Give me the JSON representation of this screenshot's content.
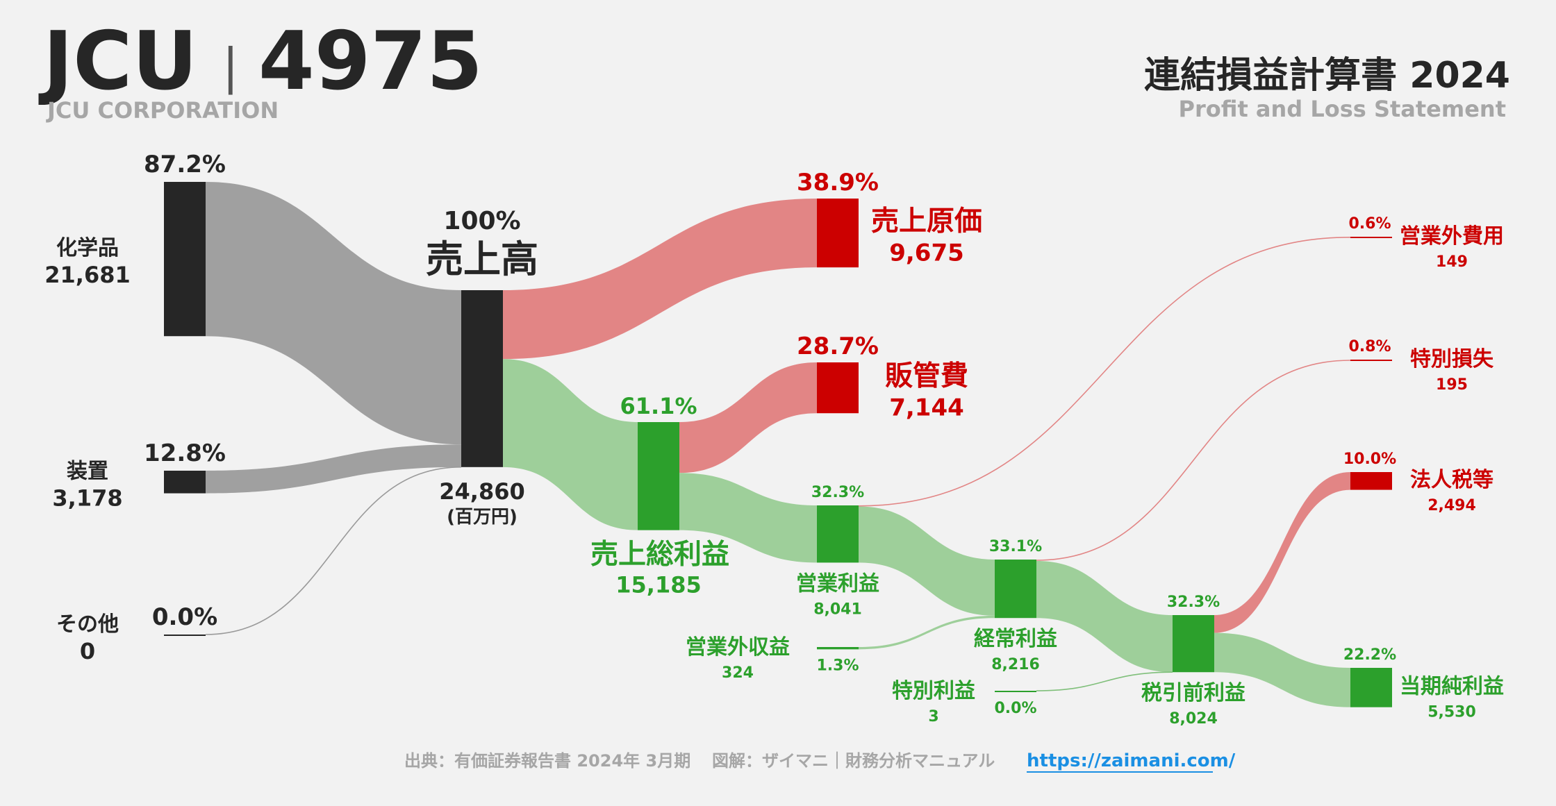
{
  "header": {
    "ticker": "JCU",
    "separator": "|",
    "code": "4975",
    "company": "JCU CORPORATION",
    "title": "連結損益計算書 2024",
    "subtitle": "Profit and Loss Statement"
  },
  "footer": {
    "source": "出典：有価証券報告書 2024年 3月期",
    "credit": "図解：ザイマニ｜財務分析マニュアル",
    "url": "https://zaimani.com/"
  },
  "colors": {
    "dark": "#262626",
    "red": "#cc0000",
    "green": "#2ca02c",
    "grey_flow": "#a0a0a0",
    "red_flow": "#e28585",
    "green_flow": "#9ecf9a"
  },
  "chart_data": {
    "type": "sankey",
    "unit": "(百万円)",
    "nodes": [
      {
        "id": "chem",
        "name": "化学品",
        "value": "21,681",
        "pct": "87.2%",
        "color": "dark"
      },
      {
        "id": "equip",
        "name": "装置",
        "value": "3,178",
        "pct": "12.8%",
        "color": "dark"
      },
      {
        "id": "other",
        "name": "その他",
        "value": "0",
        "pct": "0.0%",
        "color": "dark"
      },
      {
        "id": "revenue",
        "name": "売上高",
        "value": "24,860",
        "pct": "100%",
        "color": "dark"
      },
      {
        "id": "cogs",
        "name": "売上原価",
        "value": "9,675",
        "pct": "38.9%",
        "color": "red"
      },
      {
        "id": "gross",
        "name": "売上総利益",
        "value": "15,185",
        "pct": "61.1%",
        "color": "green"
      },
      {
        "id": "sga",
        "name": "販管費",
        "value": "7,144",
        "pct": "28.7%",
        "color": "red"
      },
      {
        "id": "opinc",
        "name": "営業利益",
        "value": "8,041",
        "pct": "32.3%",
        "color": "green"
      },
      {
        "id": "nonopinc",
        "name": "営業外収益",
        "value": "324",
        "pct": "1.3%",
        "color": "green"
      },
      {
        "id": "nonopexp",
        "name": "営業外費用",
        "value": "149",
        "pct": "0.6%",
        "color": "red"
      },
      {
        "id": "ordinc",
        "name": "経常利益",
        "value": "8,216",
        "pct": "33.1%",
        "color": "green"
      },
      {
        "id": "extgain",
        "name": "特別利益",
        "value": "3",
        "pct": "0.0%",
        "color": "green"
      },
      {
        "id": "extloss",
        "name": "特別損失",
        "value": "195",
        "pct": "0.8%",
        "color": "red"
      },
      {
        "id": "pretax",
        "name": "税引前利益",
        "value": "8,024",
        "pct": "32.3%",
        "color": "green"
      },
      {
        "id": "tax",
        "name": "法人税等",
        "value": "2,494",
        "pct": "10.0%",
        "color": "red"
      },
      {
        "id": "net",
        "name": "当期純利益",
        "value": "5,530",
        "pct": "22.2%",
        "color": "green"
      }
    ],
    "links": [
      {
        "source": "chem",
        "target": "revenue",
        "value": 21681
      },
      {
        "source": "equip",
        "target": "revenue",
        "value": 3178
      },
      {
        "source": "other",
        "target": "revenue",
        "value": 0
      },
      {
        "source": "revenue",
        "target": "cogs",
        "value": 9675
      },
      {
        "source": "revenue",
        "target": "gross",
        "value": 15185
      },
      {
        "source": "gross",
        "target": "sga",
        "value": 7144
      },
      {
        "source": "gross",
        "target": "opinc",
        "value": 8041
      },
      {
        "source": "opinc",
        "target": "nonopexp",
        "value": 149
      },
      {
        "source": "opinc",
        "target": "ordinc",
        "value": 7892
      },
      {
        "source": "nonopinc",
        "target": "ordinc",
        "value": 324
      },
      {
        "source": "ordinc",
        "target": "extloss",
        "value": 195
      },
      {
        "source": "ordinc",
        "target": "pretax",
        "value": 8021
      },
      {
        "source": "extgain",
        "target": "pretax",
        "value": 3
      },
      {
        "source": "pretax",
        "target": "tax",
        "value": 2494
      },
      {
        "source": "pretax",
        "target": "net",
        "value": 5530
      }
    ]
  }
}
